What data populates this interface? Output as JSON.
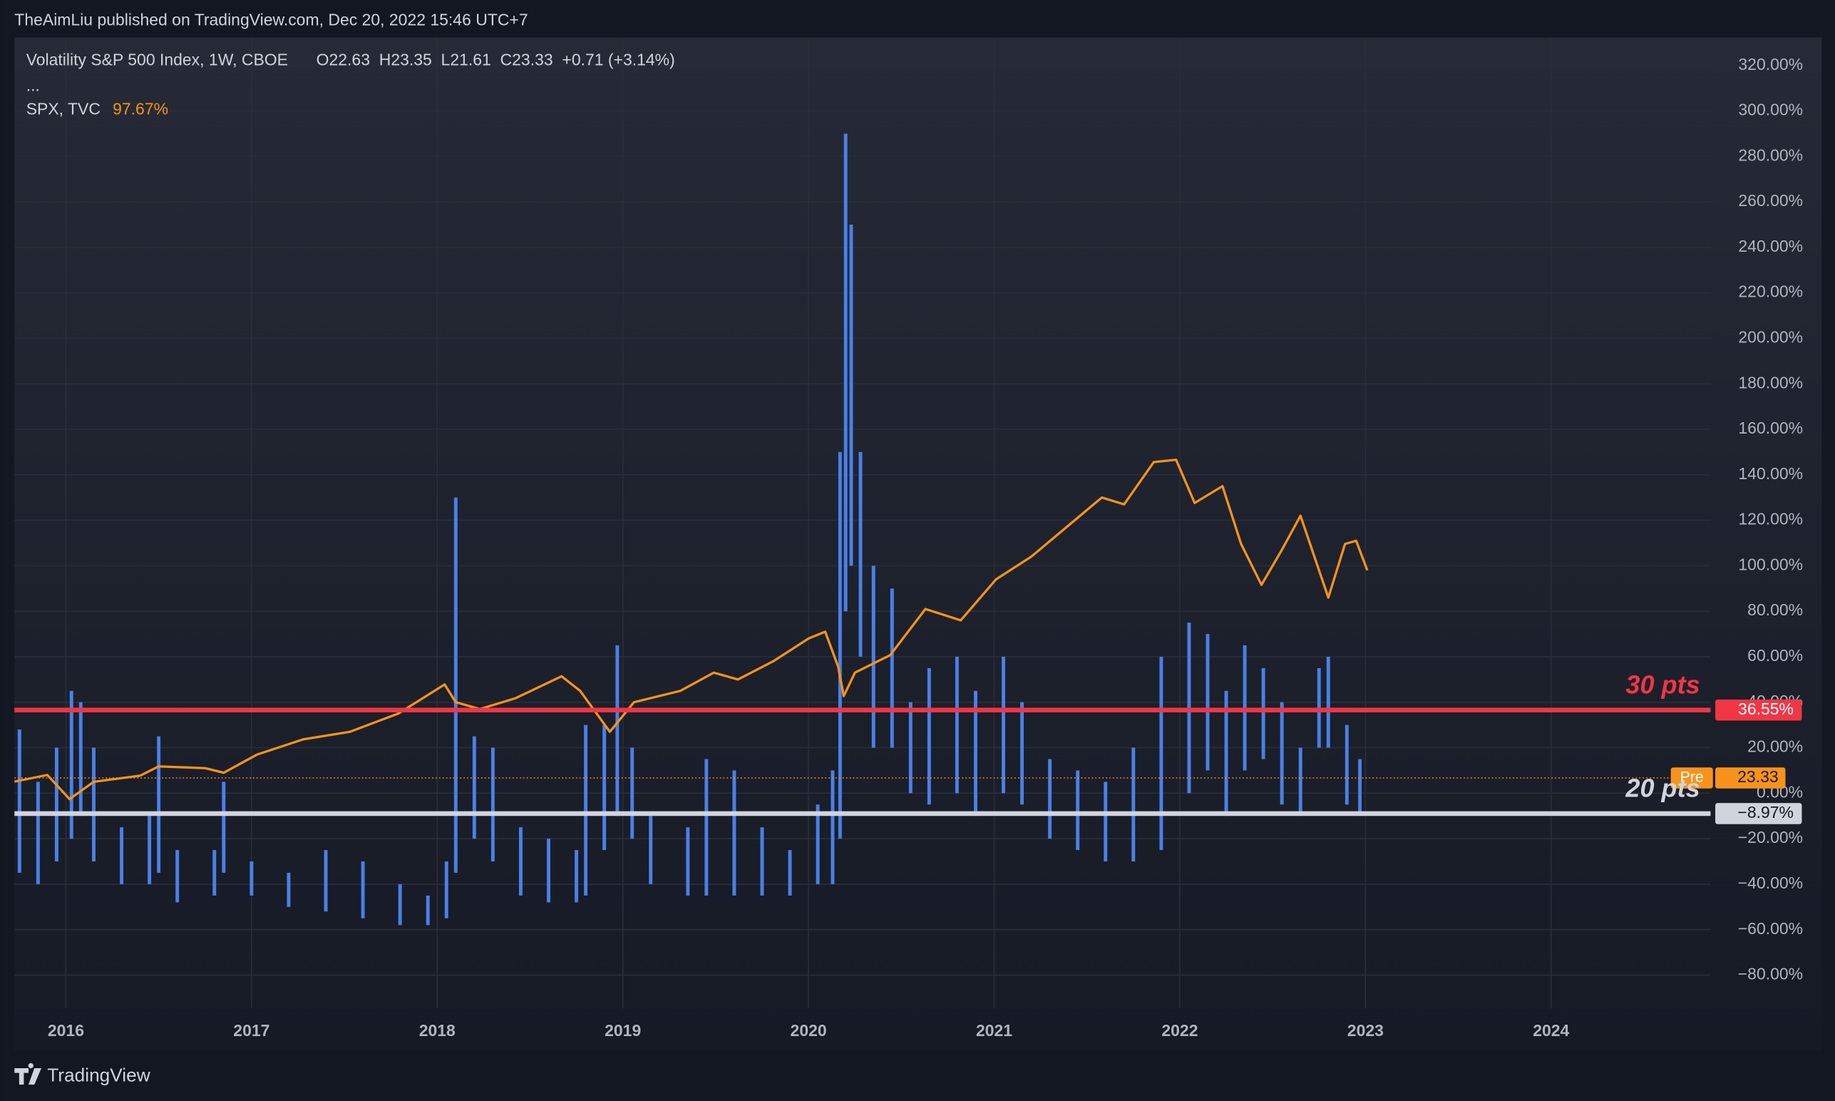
{
  "header": {
    "attribution": "TheAimLiu published on TradingView.com, Dec 20, 2022 15:46 UTC+7",
    "symbol": "Volatility S&P 500 Index, 1W, CBOE",
    "ohlc": "O22.63  H23.35  L21.61  C23.33  +0.71 (+3.14%)",
    "ellipsis": "...",
    "compare_symbol": "SPX, TVC",
    "compare_value": "97.67%"
  },
  "footer": {
    "brand": "TradingView"
  },
  "chart_data": [
    {
      "type": "range",
      "name": "Volatility S&P 500 Index",
      "color": "#4a80e8",
      "xlim": [
        2015.723,
        2024.859
      ],
      "ylim": [
        -94.7,
        332.3
      ],
      "xticks": [
        2016,
        2017,
        2018,
        2019,
        2020,
        2021,
        2022,
        2023,
        2024
      ],
      "yticks": [
        {
          "value": 320,
          "label": "320.00%"
        },
        {
          "value": 300,
          "label": "300.00%"
        },
        {
          "value": 280,
          "label": "280.00%"
        },
        {
          "value": 260,
          "label": "260.00%"
        },
        {
          "value": 240,
          "label": "240.00%"
        },
        {
          "value": 220,
          "label": "220.00%"
        },
        {
          "value": 200,
          "label": "200.00%"
        },
        {
          "value": 180,
          "label": "180.00%"
        },
        {
          "value": 160,
          "label": "160.00%"
        },
        {
          "value": 140,
          "label": "140.00%"
        },
        {
          "value": 120,
          "label": "120.00%"
        },
        {
          "value": 100,
          "label": "100.00%"
        },
        {
          "value": 80,
          "label": "80.00%"
        },
        {
          "value": 60,
          "label": "60.00%"
        },
        {
          "value": 40,
          "label": "40.00%"
        },
        {
          "value": 20,
          "label": "20.00%"
        },
        {
          "value": 0,
          "label": "0.00%"
        },
        {
          "value": -20,
          "label": "−20.00%"
        },
        {
          "value": -40,
          "label": "−40.00%"
        },
        {
          "value": -60,
          "label": "−60.00%"
        },
        {
          "value": -80,
          "label": "−80.00%"
        }
      ],
      "grid": true,
      "x": [
        2015.75,
        2015.85,
        2015.95,
        2016.03,
        2016.08,
        2016.15,
        2016.3,
        2016.45,
        2016.5,
        2016.6,
        2016.8,
        2016.85,
        2017.0,
        2017.2,
        2017.4,
        2017.6,
        2017.8,
        2017.95,
        2018.05,
        2018.1,
        2018.2,
        2018.3,
        2018.45,
        2018.6,
        2018.75,
        2018.8,
        2018.9,
        2018.97,
        2019.05,
        2019.15,
        2019.35,
        2019.45,
        2019.6,
        2019.75,
        2019.9,
        2020.05,
        2020.13,
        2020.17,
        2020.2,
        2020.23,
        2020.28,
        2020.35,
        2020.45,
        2020.55,
        2020.65,
        2020.8,
        2020.9,
        2021.05,
        2021.15,
        2021.3,
        2021.45,
        2021.6,
        2021.75,
        2021.9,
        2022.05,
        2022.15,
        2022.25,
        2022.35,
        2022.45,
        2022.55,
        2022.65,
        2022.75,
        2022.8,
        2022.9,
        2022.97
      ],
      "high": [
        28,
        5,
        20,
        45,
        40,
        20,
        -15,
        -10,
        25,
        -25,
        -25,
        5,
        -30,
        -35,
        -25,
        -30,
        -40,
        -45,
        -30,
        130,
        25,
        20,
        -15,
        -20,
        -25,
        30,
        30,
        65,
        20,
        -10,
        -15,
        15,
        10,
        -15,
        -25,
        -5,
        10,
        150,
        290,
        250,
        150,
        100,
        90,
        40,
        55,
        60,
        45,
        60,
        40,
        15,
        10,
        5,
        20,
        60,
        75,
        70,
        45,
        65,
        55,
        40,
        20,
        55,
        60,
        30,
        15
      ],
      "low": [
        -35,
        -40,
        -30,
        -20,
        -10,
        -30,
        -40,
        -40,
        -35,
        -48,
        -45,
        -35,
        -45,
        -50,
        -52,
        -55,
        -58,
        -58,
        -55,
        -35,
        -20,
        -30,
        -45,
        -48,
        -48,
        -45,
        -25,
        -10,
        -20,
        -40,
        -45,
        -45,
        -45,
        -45,
        -45,
        -40,
        -40,
        -20,
        80,
        100,
        60,
        20,
        20,
        0,
        -5,
        0,
        -10,
        0,
        -5,
        -20,
        -25,
        -30,
        -30,
        -25,
        0,
        10,
        -10,
        10,
        15,
        -5,
        -10,
        20,
        20,
        -5,
        -10
      ],
      "hlines": [
        {
          "value": 36.55,
          "label": "36.55%",
          "annotation": "30 pts",
          "color": "#f23645"
        },
        {
          "value": -8.97,
          "label": "−8.97%",
          "annotation": "20 pts",
          "color": "#d1d4dc"
        }
      ],
      "last_price": {
        "level": 6.7,
        "price": 23.33,
        "tag": "Pre",
        "color": "#f7931a"
      }
    },
    {
      "type": "line",
      "name": "SPX, TVC",
      "color": "#f7931a",
      "x": [
        2015.723,
        2015.9,
        2016.02,
        2016.15,
        2016.4,
        2016.5,
        2016.75,
        2016.85,
        2017.03,
        2017.28,
        2017.53,
        2017.79,
        2018.04,
        2018.1,
        2018.23,
        2018.42,
        2018.67,
        2018.77,
        2018.93,
        2019.06,
        2019.31,
        2019.49,
        2019.62,
        2019.81,
        2020.0,
        2020.09,
        2020.16,
        2020.19,
        2020.25,
        2020.44,
        2020.63,
        2020.82,
        2021.01,
        2021.2,
        2021.39,
        2021.58,
        2021.7,
        2021.86,
        2021.98,
        2022.08,
        2022.23,
        2022.33,
        2022.44,
        2022.55,
        2022.65,
        2022.8,
        2022.89,
        2022.95,
        2023.01
      ],
      "values": [
        5.1,
        8,
        -2.6,
        5,
        7.7,
        11.8,
        11,
        9,
        17,
        23.7,
        27,
        35,
        47.8,
        40,
        37,
        41.7,
        51.4,
        45,
        27,
        40,
        45,
        53,
        50,
        58,
        68,
        71,
        55.6,
        42.7,
        53,
        60.7,
        81,
        76,
        94,
        104,
        117,
        130,
        127,
        145.6,
        146.6,
        127.6,
        135,
        109.6,
        91.6,
        107,
        122,
        86,
        109.6,
        111,
        98
      ]
    }
  ]
}
